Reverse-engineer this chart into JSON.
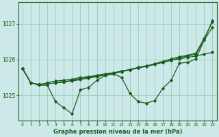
{
  "background_color": "#cce8e8",
  "plot_bg_color": "#cce8e8",
  "grid_color": "#99ccbb",
  "line_color": "#1a5c1a",
  "xlabel": "Graphe pression niveau de la mer (hPa)",
  "xlim": [
    -0.5,
    23.5
  ],
  "ylim": [
    1024.3,
    1027.6
  ],
  "yticks": [
    1025,
    1026,
    1027
  ],
  "ytick_labels": [
    "1025",
    "1026",
    "1027"
  ],
  "xticks": [
    0,
    1,
    2,
    3,
    4,
    5,
    6,
    7,
    8,
    9,
    10,
    11,
    12,
    13,
    14,
    15,
    16,
    17,
    18,
    19,
    20,
    21,
    22,
    23
  ],
  "s1": [
    1025.75,
    1025.35,
    1025.28,
    1025.28,
    1024.82,
    1024.65,
    1024.48,
    1025.15,
    1025.22,
    1025.42,
    1025.55,
    1025.6,
    1025.5,
    1025.05,
    1024.82,
    1024.78,
    1024.85,
    1025.2,
    1025.42,
    1025.9,
    1025.92,
    1026.02,
    1026.55,
    1026.9
  ],
  "s2": [
    1025.75,
    1025.35,
    1025.3,
    1025.35,
    1025.4,
    1025.42,
    1025.45,
    1025.5,
    1025.52,
    1025.56,
    1025.6,
    1025.63,
    1025.68,
    1025.72,
    1025.78,
    1025.82,
    1025.88,
    1025.93,
    1025.98,
    1026.02,
    1026.06,
    1026.1,
    1026.15,
    1026.2
  ],
  "s3": [
    1025.75,
    1025.35,
    1025.3,
    1025.32,
    1025.35,
    1025.38,
    1025.42,
    1025.47,
    1025.5,
    1025.54,
    1025.58,
    1025.62,
    1025.67,
    1025.72,
    1025.77,
    1025.82,
    1025.88,
    1025.95,
    1026.02,
    1026.08,
    1026.12,
    1026.18,
    1026.6,
    1027.05
  ],
  "s4": [
    1025.75,
    1025.35,
    1025.3,
    1025.32,
    1025.35,
    1025.37,
    1025.4,
    1025.44,
    1025.48,
    1025.52,
    1025.57,
    1025.61,
    1025.66,
    1025.71,
    1025.76,
    1025.81,
    1025.86,
    1025.92,
    1025.98,
    1026.05,
    1026.1,
    1026.15,
    1026.55,
    1027.1
  ]
}
